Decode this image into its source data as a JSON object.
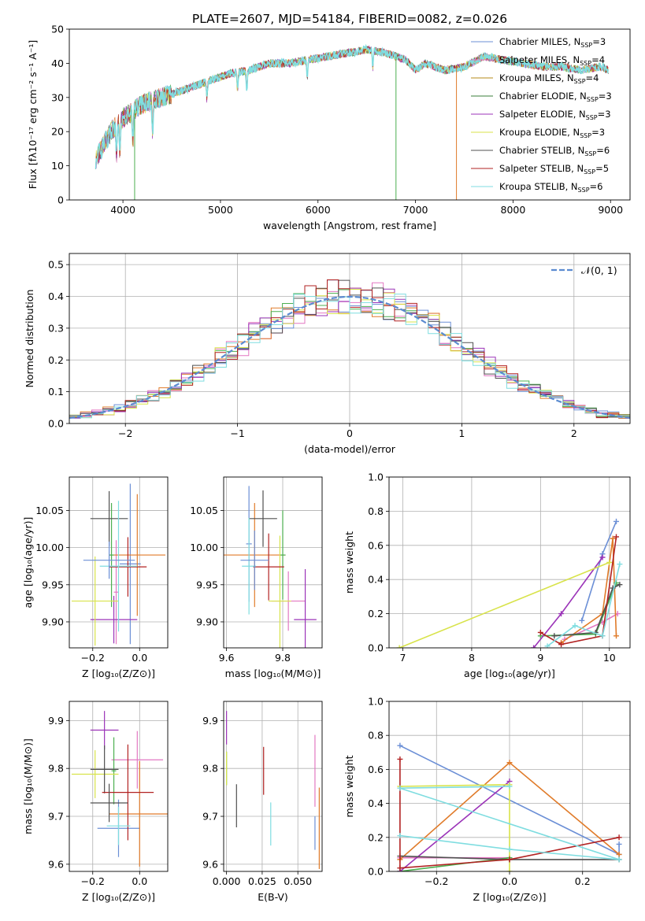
{
  "figure": {
    "title": "PLATE=2607, MJD=54184, FIBERID=0082, z=0.026"
  },
  "colors": {
    "series": [
      "#6b8fd6",
      "#e377c2",
      "#e07b2a",
      "#4caf50",
      "#9b33b8",
      "#d8e34a",
      "#505050",
      "#b22222",
      "#7fdde0"
    ],
    "grid": "#b0b0b0",
    "normal_curve": "#5b8bd0"
  },
  "legend_models": [
    {
      "label": "Chabrier MILES, N",
      "sub": "SSP",
      "suffix": "=3",
      "color": "#6b8fd6"
    },
    {
      "label": "Salpeter MILES, N",
      "sub": "SSP",
      "suffix": "=4",
      "color": "#e377c2"
    },
    {
      "label": "Kroupa MILES, N",
      "sub": "SSP",
      "suffix": "=4",
      "color": "#b58a1a"
    },
    {
      "label": "Chabrier ELODIE, N",
      "sub": "SSP",
      "suffix": "=3",
      "color": "#3a7d3a"
    },
    {
      "label": "Salpeter ELODIE, N",
      "sub": "SSP",
      "suffix": "=3",
      "color": "#9b33b8"
    },
    {
      "label": "Kroupa ELODIE, N",
      "sub": "SSP",
      "suffix": "=3",
      "color": "#d8e34a"
    },
    {
      "label": "Chabrier STELIB, N",
      "sub": "SSP",
      "suffix": "=6",
      "color": "#505050"
    },
    {
      "label": "Salpeter STELIB, N",
      "sub": "SSP",
      "suffix": "=5",
      "color": "#b22222"
    },
    {
      "label": "Kroupa STELIB, N",
      "sub": "SSP",
      "suffix": "=6",
      "color": "#7fdde0"
    }
  ],
  "chart_data": [
    {
      "id": "spectrum",
      "type": "line",
      "title": "PLATE=2607, MJD=54184, FIBERID=0082, z=0.026",
      "xlabel": "wavelength [Angstrom, rest frame]",
      "ylabel": "Flux [fλ10⁻¹⁷ erg cm⁻² s⁻¹ A⁻¹]",
      "xlim": [
        3450,
        9200
      ],
      "ylim": [
        0,
        50
      ],
      "xticks": [
        4000,
        5000,
        6000,
        7000,
        8000,
        9000
      ],
      "yticks": [
        0,
        10,
        20,
        30,
        40,
        50
      ],
      "continuum_knots": {
        "x": [
          3720,
          3800,
          3900,
          4000,
          4100,
          4200,
          4300,
          4500,
          4700,
          4900,
          5100,
          5300,
          5500,
          5700,
          5900,
          6100,
          6300,
          6500,
          6700,
          6900,
          7000,
          7100,
          7300,
          7500,
          7700,
          7900,
          8100,
          8300,
          8500,
          8700,
          8900,
          8980
        ],
        "y": [
          12,
          16,
          21,
          24,
          26,
          28,
          29,
          31,
          33,
          35,
          37,
          38,
          40,
          40,
          41,
          42,
          43,
          44,
          43,
          41,
          38,
          40,
          38,
          39,
          42,
          41,
          40,
          39,
          39,
          38,
          39,
          38
        ]
      },
      "absorption_lines": [
        3934,
        3969,
        4102,
        4304,
        4861,
        5175,
        5270,
        5890,
        6563
      ],
      "dropouts": [
        {
          "x": 4120,
          "y": 0
        },
        {
          "x": 6800,
          "y": 0
        },
        {
          "x": 7420,
          "y": 0
        }
      ],
      "legend_loc": "upper right"
    },
    {
      "id": "residuals",
      "type": "histogram",
      "xlabel": "(data-model)/error",
      "ylabel": "Normed distribution",
      "xlim": [
        -2.5,
        2.5
      ],
      "ylim": [
        0,
        0.535
      ],
      "xticks": [
        -2,
        -1,
        0,
        1,
        2
      ],
      "yticks": [
        0,
        0.1,
        0.2,
        0.3,
        0.4,
        0.5
      ],
      "bin_width": 0.1,
      "legend": "𝒩(0, 1)",
      "reference": "gaussian mean 0 sigma 1"
    },
    {
      "id": "age-vs-Z",
      "type": "errorbar",
      "xlabel": "Z [log₁₀(Z/Z⊙)]",
      "ylabel": "age  [log₁₀(age/yr)]",
      "xlim": [
        -0.3,
        0.12
      ],
      "ylim": [
        9.865,
        10.095
      ],
      "xticks": [
        -0.2,
        0.0
      ],
      "yticks": [
        9.9,
        9.95,
        10.0,
        10.05
      ],
      "points": [
        {
          "x": -0.04,
          "y": 9.978,
          "xerr": 0.045,
          "yerr": 0.108,
          "c": 0
        },
        {
          "x": -0.1,
          "y": 9.94,
          "xerr": 0.01,
          "yerr": 0.07,
          "c": 1
        },
        {
          "x": -0.01,
          "y": 9.99,
          "xerr": 0.12,
          "yerr": 0.082,
          "c": 2
        },
        {
          "x": -0.12,
          "y": 9.99,
          "xerr": 0.01,
          "yerr": 0.07,
          "c": 3
        },
        {
          "x": -0.11,
          "y": 9.903,
          "xerr": 0.1,
          "yerr": 0.032,
          "c": 4
        },
        {
          "x": -0.19,
          "y": 9.928,
          "xerr": 0.1,
          "yerr": 0.06,
          "c": 5
        },
        {
          "x": -0.13,
          "y": 10.039,
          "xerr": 0.08,
          "yerr": 0.037,
          "c": 6
        },
        {
          "x": -0.05,
          "y": 9.974,
          "xerr": 0.08,
          "yerr": 0.04,
          "c": 7
        },
        {
          "x": -0.09,
          "y": 9.975,
          "xerr": 0.08,
          "yerr": 0.088,
          "c": 8
        },
        {
          "x": -0.13,
          "y": 9.983,
          "xerr": 0.11,
          "yerr": 0.025,
          "c": 0
        }
      ]
    },
    {
      "id": "age-vs-mass",
      "type": "errorbar",
      "xlabel": "mass [log₁₀(M/M⊙)]",
      "ylabel": "",
      "xlim": [
        9.59,
        9.94
      ],
      "ylim": [
        9.865,
        10.095
      ],
      "xticks": [
        9.6,
        9.8
      ],
      "yticks": [
        9.9,
        9.95,
        10.0,
        10.05
      ],
      "points": [
        {
          "x": 9.68,
          "y": 10.005,
          "xerr": 0.01,
          "yerr": 0.078,
          "c": 0
        },
        {
          "x": 9.82,
          "y": 9.928,
          "xerr": 0.06,
          "yerr": 0.04,
          "c": 1
        },
        {
          "x": 9.7,
          "y": 9.99,
          "xerr": 0.11,
          "yerr": 0.07,
          "c": 2
        },
        {
          "x": 9.8,
          "y": 9.99,
          "xerr": 0.01,
          "yerr": 0.06,
          "c": 3
        },
        {
          "x": 9.88,
          "y": 9.903,
          "xerr": 0.04,
          "yerr": 0.068,
          "c": 4
        },
        {
          "x": 9.79,
          "y": 9.928,
          "xerr": 0.04,
          "yerr": 0.088,
          "c": 5
        },
        {
          "x": 9.73,
          "y": 10.039,
          "xerr": 0.05,
          "yerr": 0.038,
          "c": 6
        },
        {
          "x": 9.75,
          "y": 9.974,
          "xerr": 0.055,
          "yerr": 0.045,
          "c": 7
        },
        {
          "x": 9.68,
          "y": 9.975,
          "xerr": 0.025,
          "yerr": 0.065,
          "c": 8
        },
        {
          "x": 9.7,
          "y": 9.983,
          "xerr": 0.05,
          "yerr": 0.04,
          "c": 0
        }
      ]
    },
    {
      "id": "weight-vs-age",
      "type": "line",
      "xlabel": "age  [log₁₀(age/yr)]",
      "ylabel": "mass weight",
      "xlim": [
        6.8,
        10.3
      ],
      "ylim": [
        0,
        1.0
      ],
      "xticks": [
        7,
        8,
        9,
        10
      ],
      "yticks": [
        0.0,
        0.2,
        0.4,
        0.6,
        0.8,
        1.0
      ],
      "series": [
        {
          "c": 0,
          "x": [
            9.6,
            9.9,
            10.1
          ],
          "y": [
            0.16,
            0.55,
            0.74
          ]
        },
        {
          "c": 1,
          "x": [
            9.35,
            9.9,
            10.12
          ],
          "y": [
            0.05,
            0.15,
            0.2
          ]
        },
        {
          "c": 2,
          "x": [
            9.3,
            9.9,
            10.05,
            10.1
          ],
          "y": [
            0.03,
            0.2,
            0.64,
            0.07
          ]
        },
        {
          "c": 3,
          "x": [
            9.0,
            9.8,
            10.1
          ],
          "y": [
            0.07,
            0.08,
            0.38
          ]
        },
        {
          "c": 4,
          "x": [
            8.9,
            9.3,
            9.9
          ],
          "y": [
            0.0,
            0.2,
            0.53
          ]
        },
        {
          "c": 5,
          "x": [
            6.95,
            10.0
          ],
          "y": [
            0.0,
            0.5
          ]
        },
        {
          "c": 6,
          "x": [
            9.2,
            9.8,
            10.05,
            10.15
          ],
          "y": [
            0.07,
            0.09,
            0.35,
            0.37
          ]
        },
        {
          "c": 7,
          "x": [
            9.0,
            9.3,
            9.9,
            10.1
          ],
          "y": [
            0.09,
            0.02,
            0.07,
            0.65
          ]
        },
        {
          "c": 8,
          "x": [
            9.1,
            9.5,
            9.9,
            10.15
          ],
          "y": [
            0.01,
            0.13,
            0.07,
            0.49
          ]
        }
      ]
    },
    {
      "id": "mass-vs-Z",
      "type": "errorbar",
      "xlabel": "Z [log₁₀(Z/Z⊙)]",
      "ylabel": "mass [log₁₀(M/M⊙)]",
      "xlim": [
        -0.3,
        0.12
      ],
      "ylim": [
        9.585,
        9.94
      ],
      "xticks": [
        -0.2,
        0.0
      ],
      "yticks": [
        9.6,
        9.7,
        9.8,
        9.9
      ],
      "points": [
        {
          "x": -0.09,
          "y": 9.675,
          "xerr": 0.09,
          "yerr": 0.06,
          "c": 0
        },
        {
          "x": -0.01,
          "y": 9.818,
          "xerr": 0.11,
          "yerr": 0.06,
          "c": 1
        },
        {
          "x": 0.0,
          "y": 9.705,
          "xerr": 0.13,
          "yerr": 0.11,
          "c": 2
        },
        {
          "x": -0.11,
          "y": 9.795,
          "xerr": 0.01,
          "yerr": 0.07,
          "c": 3
        },
        {
          "x": -0.15,
          "y": 9.88,
          "xerr": 0.06,
          "yerr": 0.04,
          "c": 4
        },
        {
          "x": -0.19,
          "y": 9.788,
          "xerr": 0.1,
          "yerr": 0.05,
          "c": 5
        },
        {
          "x": -0.15,
          "y": 9.798,
          "xerr": 0.06,
          "yerr": 0.05,
          "c": 6
        },
        {
          "x": -0.05,
          "y": 9.75,
          "xerr": 0.11,
          "yerr": 0.1,
          "c": 7
        },
        {
          "x": -0.09,
          "y": 9.68,
          "xerr": 0.05,
          "yerr": 0.04,
          "c": 8
        },
        {
          "x": -0.13,
          "y": 9.728,
          "xerr": 0.08,
          "yerr": 0.04,
          "c": 6
        }
      ]
    },
    {
      "id": "mass-vs-EBV",
      "type": "errorbar",
      "xlabel": "E(B-V)",
      "ylabel": "",
      "xlim": [
        -0.002,
        0.067
      ],
      "ylim": [
        9.585,
        9.94
      ],
      "xticks": [
        0.0,
        0.025,
        0.05
      ],
      "yticks": [
        9.6,
        9.7,
        9.8,
        9.9
      ],
      "points": [
        {
          "x": 0.062,
          "y": 9.665,
          "xerr": 0,
          "yerr": 0.035,
          "c": 0
        },
        {
          "x": 0.062,
          "y": 9.795,
          "xerr": 0,
          "yerr": 0.075,
          "c": 1
        },
        {
          "x": 0.065,
          "y": 9.675,
          "xerr": 0,
          "yerr": 0.085,
          "c": 2
        },
        {
          "x": 0.0,
          "y": 9.8,
          "xerr": 0,
          "yerr": 0.035,
          "c": 3
        },
        {
          "x": 0.0,
          "y": 9.885,
          "xerr": 0,
          "yerr": 0.035,
          "c": 4
        },
        {
          "x": 0.0,
          "y": 9.8,
          "xerr": 0,
          "yerr": 0.035,
          "c": 5
        },
        {
          "x": 0.007,
          "y": 9.722,
          "xerr": 0,
          "yerr": 0.045,
          "c": 6
        },
        {
          "x": 0.026,
          "y": 9.795,
          "xerr": 0,
          "yerr": 0.05,
          "c": 7
        },
        {
          "x": 0.031,
          "y": 9.684,
          "xerr": 0,
          "yerr": 0.045,
          "c": 8
        }
      ]
    },
    {
      "id": "weight-vs-Z",
      "type": "line",
      "xlabel": "Z [log₁₀(Z/Z⊙)]",
      "ylabel": "mass weight",
      "xlim": [
        -0.33,
        0.33
      ],
      "ylim": [
        0,
        1.0
      ],
      "xticks": [
        -0.2,
        0.0,
        0.2
      ],
      "yticks": [
        0.0,
        0.2,
        0.4,
        0.6,
        0.8,
        1.0
      ],
      "series": [
        {
          "c": 0,
          "x": [
            -0.3,
            0.3,
            0.3
          ],
          "y": [
            0.74,
            0.1,
            0.16
          ]
        },
        {
          "c": 1,
          "x": [
            -0.3,
            0.0
          ],
          "y": [
            0.08,
            0.08
          ]
        },
        {
          "c": 2,
          "x": [
            -0.3,
            0.0,
            0.3
          ],
          "y": [
            0.07,
            0.64,
            0.1
          ]
        },
        {
          "c": 3,
          "x": [
            -0.3,
            0.0
          ],
          "y": [
            0.0,
            0.08
          ]
        },
        {
          "c": 4,
          "x": [
            -0.3,
            0.0
          ],
          "y": [
            0.0,
            0.53
          ]
        },
        {
          "c": 5,
          "x": [
            -0.3,
            0.0,
            0.0
          ],
          "y": [
            0.5,
            0.51,
            0.0
          ]
        },
        {
          "c": 6,
          "x": [
            -0.3,
            0.0,
            0.3
          ],
          "y": [
            0.09,
            0.07,
            0.07
          ]
        },
        {
          "c": 7,
          "x": [
            -0.3,
            -0.3,
            0.0,
            0.3
          ],
          "y": [
            0.66,
            0.02,
            0.07,
            0.2
          ]
        },
        {
          "c": 8,
          "x": [
            -0.3,
            0.0,
            0.3,
            -0.3,
            0.0
          ],
          "y": [
            0.21,
            0.13,
            0.07,
            0.49,
            0.5
          ]
        }
      ]
    }
  ]
}
